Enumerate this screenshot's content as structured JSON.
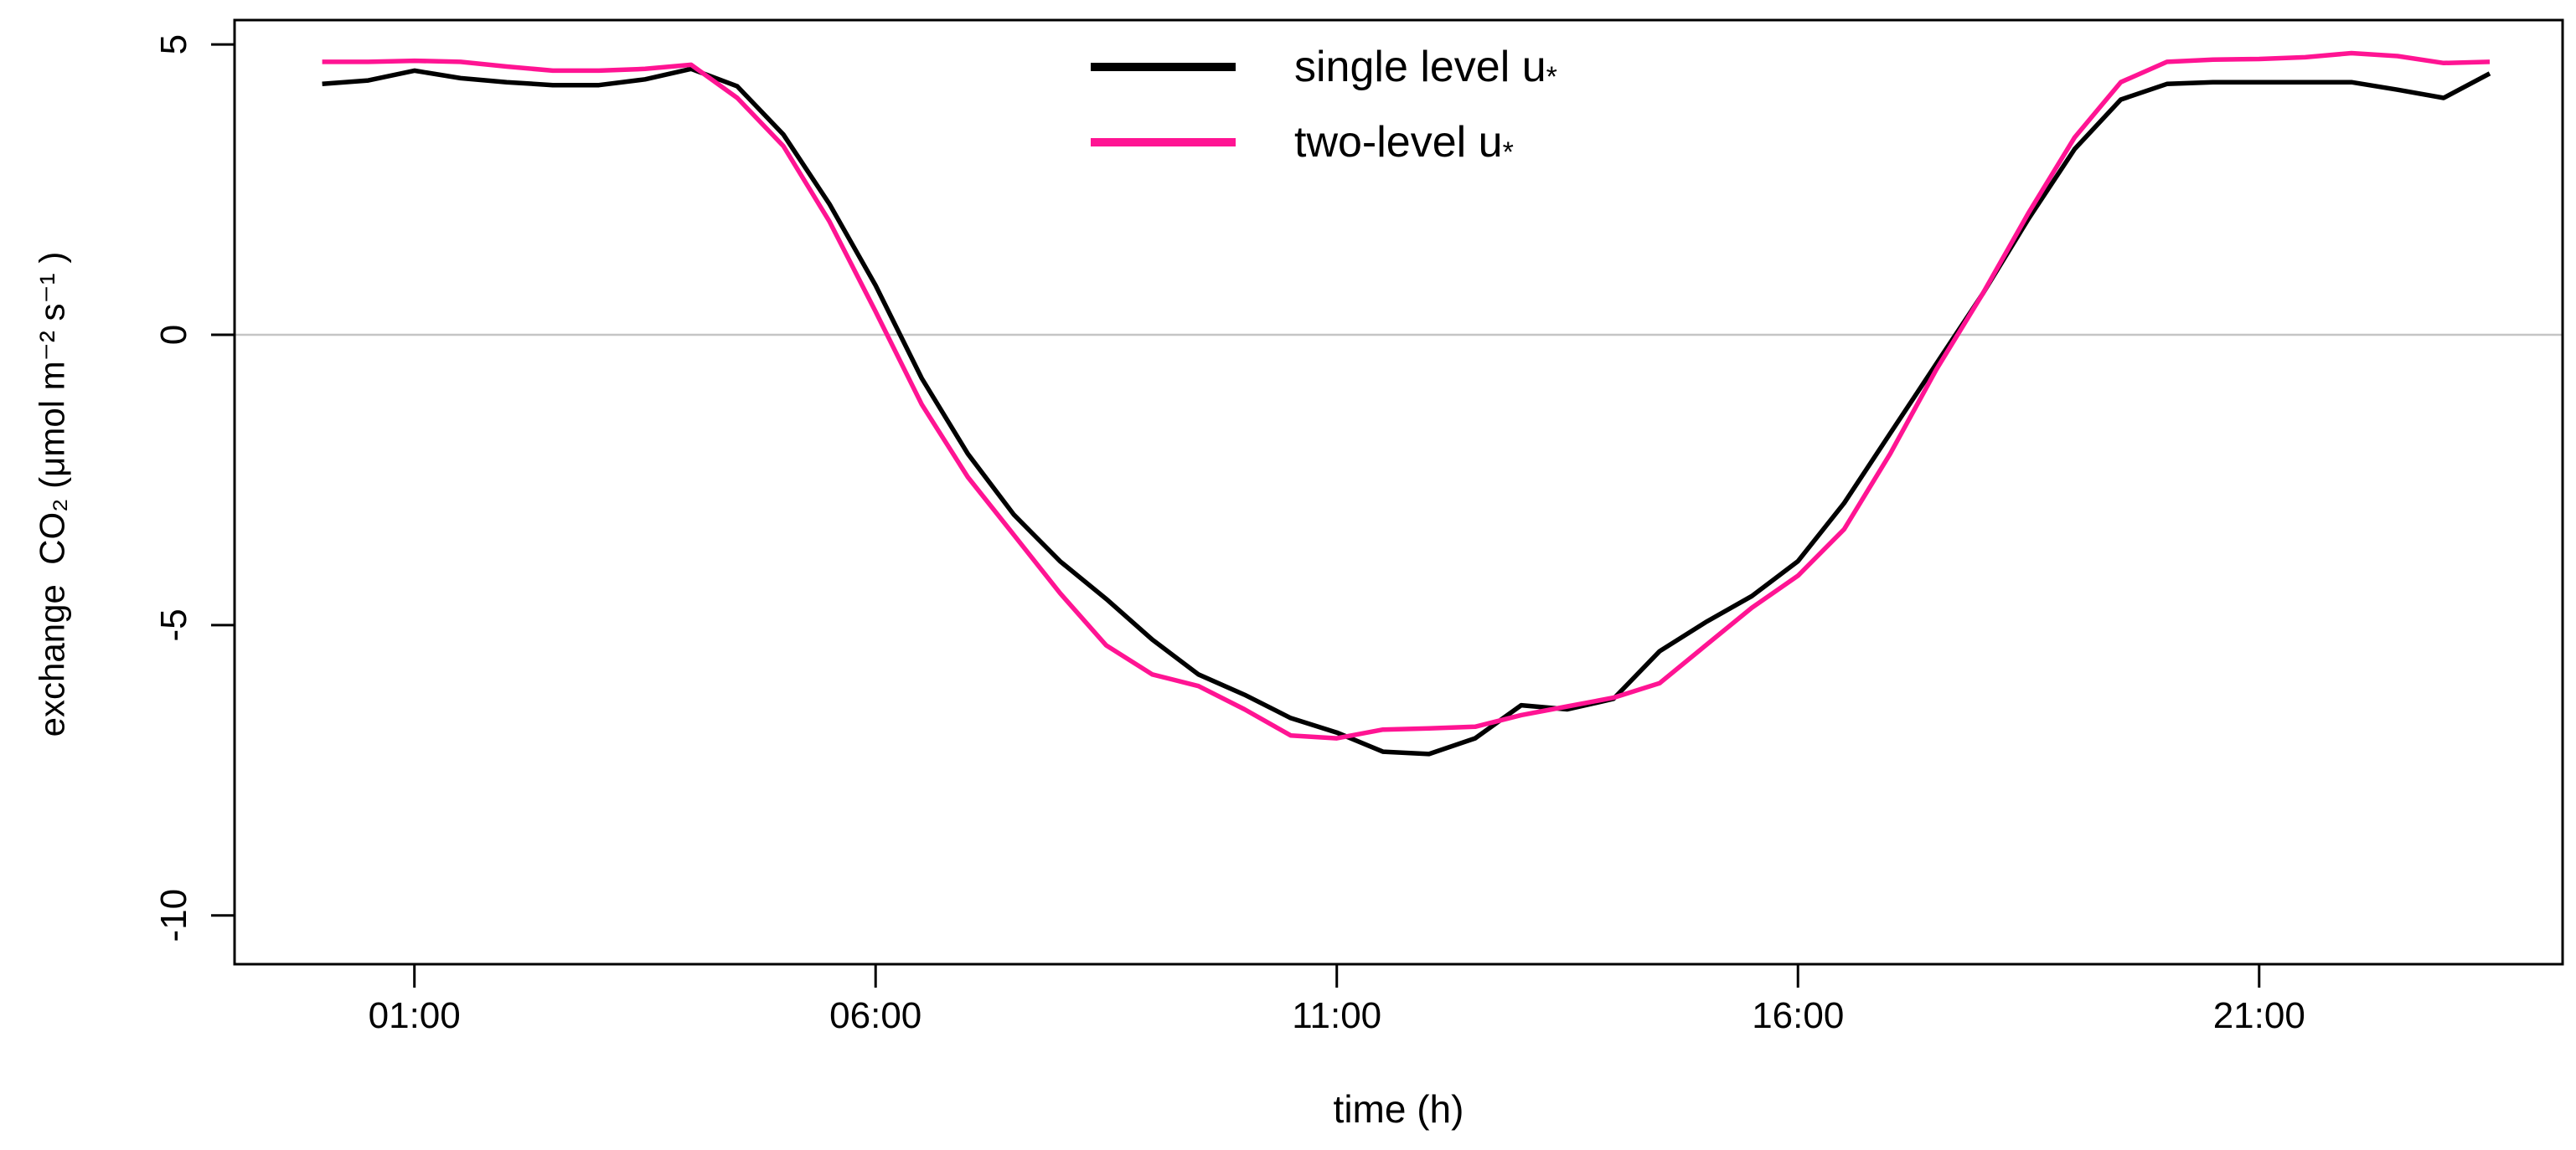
{
  "chart_data": {
    "type": "line",
    "title": "",
    "xlabel": "time (h)",
    "ylabel": "exchange  CO₂ (μmol m⁻² s⁻¹ )",
    "x_tick_labels": [
      "01:00",
      "06:00",
      "11:00",
      "16:00",
      "21:00"
    ],
    "x_ticks": [
      1,
      6,
      11,
      16,
      21
    ],
    "y_tick_labels": [
      "5",
      "0",
      "-5",
      "-10"
    ],
    "y_ticks": [
      5,
      0,
      -5,
      -10
    ],
    "xlim": [
      -0.95,
      24.29
    ],
    "ylim": [
      -10.84,
      5.42
    ],
    "grid": "horizontal zero line only",
    "zero_line_value": 0,
    "zero_line_color": "#c5c5c5",
    "box_color": "#000000",
    "background_color": "#ffffff",
    "legend_position": "top center, inside plot, no box",
    "x_unit": "hours (half-hourly means)",
    "x": [
      0,
      0.5,
      1,
      1.5,
      2,
      2.5,
      3,
      3.5,
      4,
      4.5,
      5,
      5.5,
      6,
      6.5,
      7,
      7.5,
      8,
      8.5,
      9,
      9.5,
      10,
      10.5,
      11,
      11.5,
      12,
      12.5,
      13,
      13.5,
      14,
      14.5,
      15,
      15.5,
      16,
      16.5,
      17,
      17.5,
      18,
      18.5,
      19,
      19.5,
      20,
      20.5,
      21,
      21.5,
      22,
      22.5,
      23,
      23.5
    ],
    "series": [
      {
        "name": "single level u*",
        "label_main": "single level u",
        "label_sub": "*",
        "color": "#000000",
        "values": [
          4.32,
          4.38,
          4.55,
          4.42,
          4.35,
          4.3,
          4.3,
          4.4,
          4.58,
          4.28,
          3.45,
          2.25,
          0.85,
          -0.75,
          -2.05,
          -3.1,
          -3.9,
          -4.55,
          -5.25,
          -5.85,
          -6.2,
          -6.6,
          -6.85,
          -7.18,
          -7.22,
          -6.95,
          -6.38,
          -6.45,
          -6.27,
          -5.45,
          -4.95,
          -4.5,
          -3.9,
          -2.9,
          -1.7,
          -0.5,
          0.7,
          2.0,
          3.2,
          4.05,
          4.32,
          4.35,
          4.35,
          4.35,
          4.35,
          4.22,
          4.08,
          4.5
        ]
      },
      {
        "name": "two-level u*",
        "label_main": "two-level u",
        "label_sub": "*",
        "color": "#ff1493",
        "values": [
          4.7,
          4.7,
          4.72,
          4.7,
          4.62,
          4.55,
          4.55,
          4.58,
          4.65,
          4.08,
          3.25,
          1.95,
          0.4,
          -1.2,
          -2.45,
          -3.45,
          -4.45,
          -5.35,
          -5.85,
          -6.05,
          -6.45,
          -6.9,
          -6.95,
          -6.8,
          -6.78,
          -6.75,
          -6.55,
          -6.4,
          -6.25,
          -6.0,
          -5.35,
          -4.7,
          -4.15,
          -3.35,
          -2.05,
          -0.6,
          0.7,
          2.1,
          3.4,
          4.35,
          4.7,
          4.74,
          4.75,
          4.78,
          4.85,
          4.8,
          4.68,
          4.7
        ]
      }
    ]
  }
}
